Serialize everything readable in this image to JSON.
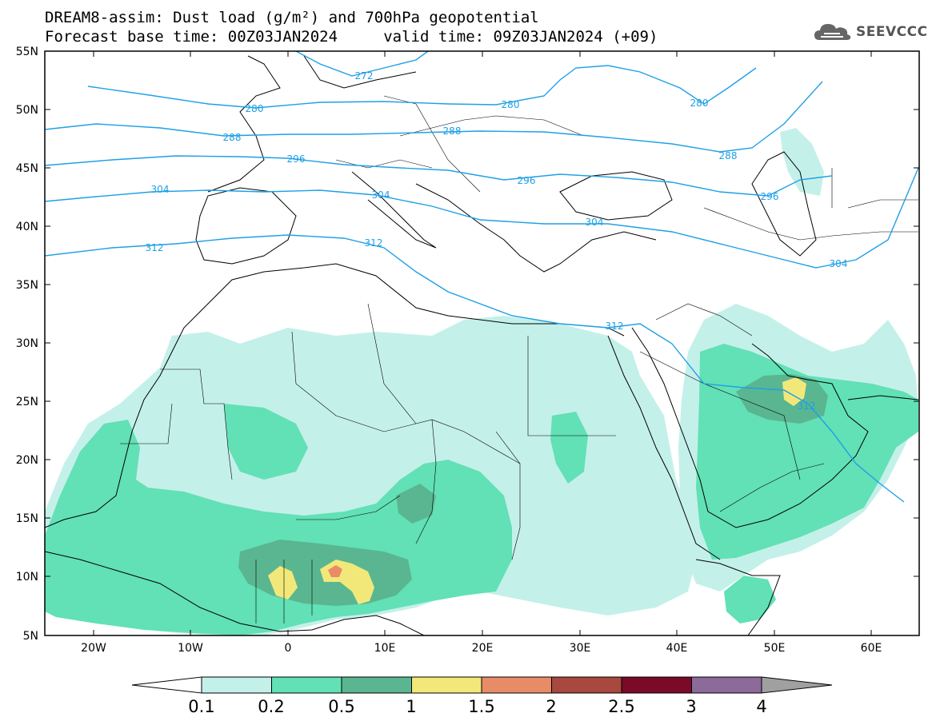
{
  "header": {
    "line1": "DREAM8-assim: Dust load (g/m²) and 700hPa geopotential",
    "line2": "Forecast base time: 00Z03JAN2024     valid time: 09Z03JAN2024 (+09)",
    "logo_text": "SEEVCCC"
  },
  "axes": {
    "lat_labels": [
      "55N",
      "50N",
      "45N",
      "40N",
      "35N",
      "30N",
      "25N",
      "20N",
      "15N",
      "10N",
      "5N"
    ],
    "lon_labels": [
      "20W",
      "10W",
      "0",
      "10E",
      "20E",
      "30E",
      "40E",
      "50E",
      "60E"
    ]
  },
  "contours": {
    "color": "#1ea0e6",
    "labels": [
      "272",
      "280",
      "280",
      "280",
      "288",
      "288",
      "288",
      "296",
      "296",
      "296",
      "304",
      "304",
      "304",
      "304",
      "312",
      "312",
      "312",
      "312"
    ]
  },
  "colorbar": {
    "ticks": [
      "0.1",
      "0.2",
      "0.5",
      "1",
      "1.5",
      "2",
      "2.5",
      "3",
      "4"
    ],
    "colors": [
      "#c4f0ea",
      "#62e0b6",
      "#5ab690",
      "#f2e87a",
      "#e88c68",
      "#a8483e",
      "#7a0a28",
      "#8c6a9a"
    ]
  }
}
